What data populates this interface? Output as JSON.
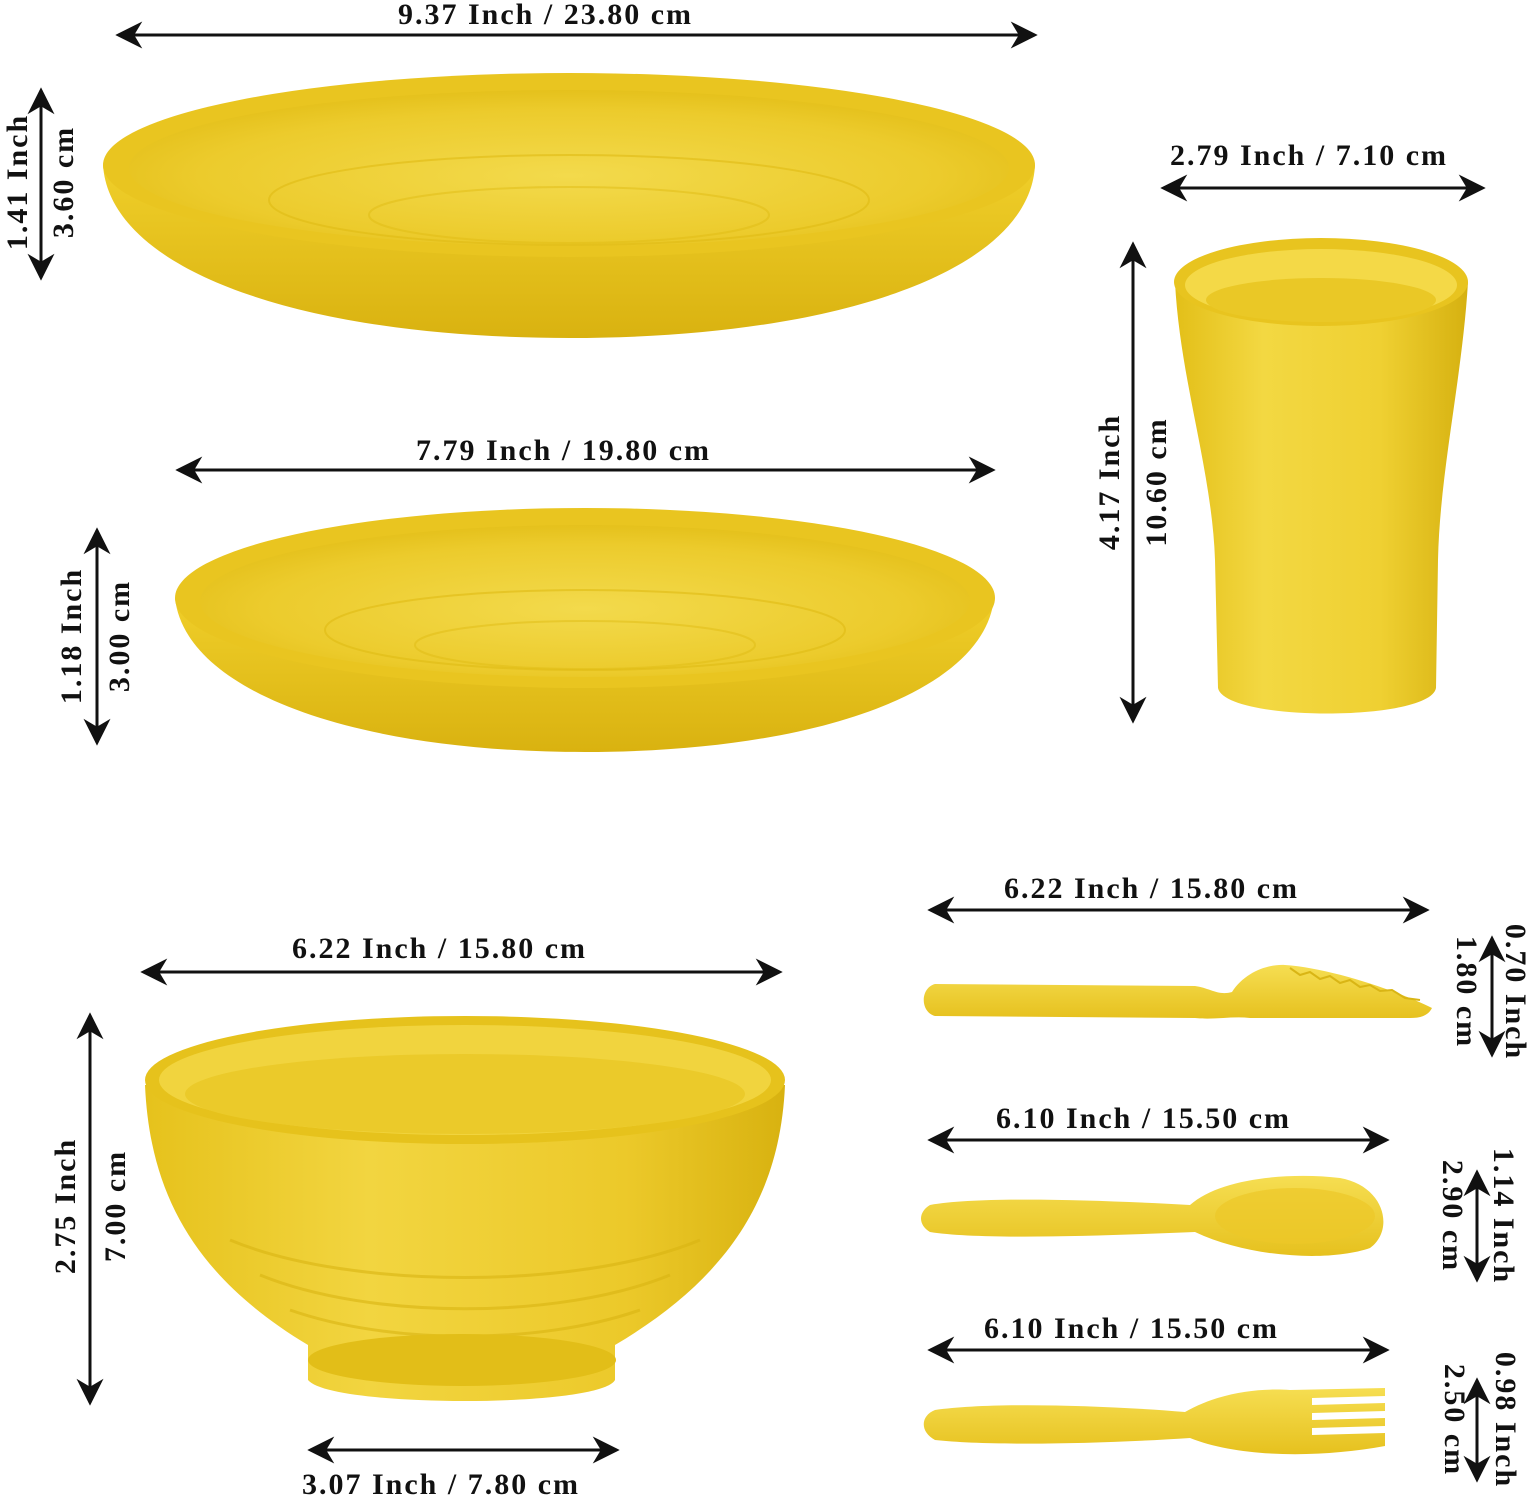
{
  "colors": {
    "yellow_light": "#f2d743",
    "yellow_mid": "#e8c21c",
    "yellow_dark": "#cfa90c",
    "arrow": "#111111",
    "background": "#ffffff"
  },
  "items": {
    "large_plate": {
      "width_label": "9.37 Inch / 23.80 cm",
      "height_inch": "1.41 Inch",
      "height_cm": "3.60 cm"
    },
    "small_plate": {
      "width_label": "7.79 Inch / 19.80 cm",
      "height_inch": "1.18 Inch",
      "height_cm": "3.00 cm"
    },
    "cup": {
      "width_label": "2.79 Inch / 7.10 cm",
      "height_inch": "4.17 Inch",
      "height_cm": "10.60 cm"
    },
    "bowl": {
      "width_label": "6.22 Inch / 15.80 cm",
      "height_inch": "2.75 Inch",
      "height_cm": "7.00 cm",
      "base_label": "3.07 Inch / 7.80 cm"
    },
    "knife": {
      "width_label": "6.22 Inch / 15.80 cm",
      "height_inch": "0.70 Inch",
      "height_cm": "1.80 cm"
    },
    "spoon": {
      "width_label": "6.10 Inch / 15.50 cm",
      "height_inch": "1.14 Inch",
      "height_cm": "2.90 cm"
    },
    "fork": {
      "width_label": "6.10 Inch / 15.50 cm",
      "height_inch": "0.98 Inch",
      "height_cm": "2.50 cm"
    }
  }
}
